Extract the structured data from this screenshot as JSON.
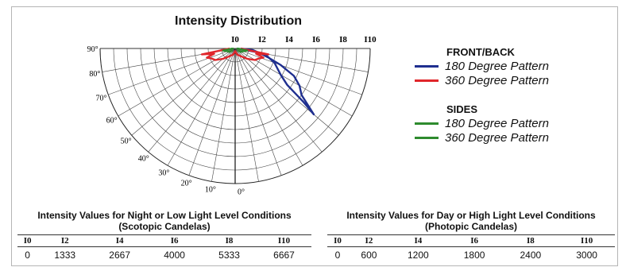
{
  "chart_data": {
    "type": "polar",
    "title": "Intensity Distribution",
    "radial_tick_labels": [
      "I0",
      "I2",
      "I4",
      "I6",
      "I8",
      "I10"
    ],
    "angle_tick_labels": [
      "90°",
      "80°",
      "70°",
      "60°",
      "50°",
      "40°",
      "30°",
      "20°",
      "10°",
      "0°"
    ],
    "legend_groups": [
      {
        "title": "FRONT/BACK",
        "entries": [
          {
            "name": "180 Degree Pattern",
            "color": "#1f2f8f"
          },
          {
            "name": "360 Degree Pattern",
            "color": "#e0262b"
          }
        ]
      },
      {
        "title": "SIDES",
        "entries": [
          {
            "name": "180 Degree Pattern",
            "color": "#2e8b2e"
          },
          {
            "name": "360 Degree Pattern",
            "color": "#2e8b2e"
          }
        ]
      }
    ],
    "series": [
      {
        "name": "180 Degree Pattern",
        "color": "#1f2f8f",
        "points": [
          [
            90,
            0.15
          ],
          [
            80,
            2.2
          ],
          [
            70,
            3.1
          ],
          [
            60,
            3.9
          ],
          [
            55,
            4.7
          ],
          [
            52,
            6.4
          ],
          [
            50,
            7.6
          ],
          [
            55,
            6.0
          ],
          [
            60,
            5.5
          ],
          [
            65,
            4.8
          ],
          [
            70,
            3.6
          ],
          [
            75,
            2.5
          ],
          [
            80,
            1.8
          ],
          [
            85,
            1.3
          ],
          [
            89,
            0.4
          ]
        ]
      },
      {
        "name": "360 Degree Pattern",
        "color": "#e0262b",
        "points": [
          [
            -89,
            0.4
          ],
          [
            -80,
            2.5
          ],
          [
            -76,
            1.6
          ],
          [
            -72,
            2.2
          ],
          [
            -67,
            1.9
          ],
          [
            -60,
            1.7
          ],
          [
            -50,
            1.2
          ],
          [
            -40,
            0.8
          ],
          [
            -30,
            0.6
          ],
          [
            -20,
            0.5
          ],
          [
            -10,
            0.3
          ],
          [
            0,
            0.2
          ],
          [
            10,
            0.3
          ],
          [
            20,
            0.5
          ],
          [
            30,
            0.6
          ],
          [
            40,
            0.8
          ],
          [
            50,
            1.2
          ],
          [
            60,
            1.7
          ],
          [
            67,
            1.9
          ],
          [
            72,
            2.2
          ],
          [
            76,
            1.6
          ],
          [
            80,
            2.5
          ],
          [
            89,
            0.4
          ]
        ]
      },
      {
        "name": "180 Degree Pattern",
        "color": "#2e8b2e",
        "points": [
          [
            90,
            0.1
          ],
          [
            80,
            0.9
          ],
          [
            70,
            0.6
          ],
          [
            60,
            0.5
          ],
          [
            55,
            0.3
          ],
          [
            60,
            0.5
          ],
          [
            70,
            0.6
          ],
          [
            80,
            0.9
          ],
          [
            88,
            0.2
          ]
        ]
      },
      {
        "name": "360 Degree Pattern",
        "color": "#2e8b2e",
        "points": [
          [
            -90,
            0.1
          ],
          [
            -80,
            0.9
          ],
          [
            -70,
            0.6
          ],
          [
            -60,
            0.5
          ],
          [
            -55,
            0.3
          ],
          [
            -60,
            0.5
          ],
          [
            -70,
            0.6
          ],
          [
            -80,
            0.9
          ],
          [
            -88,
            0.2
          ]
        ]
      }
    ]
  },
  "tables": [
    {
      "heading_line1": "Intensity Values for Night or Low Light Level Conditions",
      "heading_line2": "(Scotopic Candelas)",
      "columns": [
        "I0",
        "I2",
        "I4",
        "I6",
        "I8",
        "I10"
      ],
      "values": [
        "0",
        "1333",
        "2667",
        "4000",
        "5333",
        "6667"
      ]
    },
    {
      "heading_line1": "Intensity Values for Day or High Light Level Conditions",
      "heading_line2": "(Photopic Candelas)",
      "columns": [
        "I0",
        "I2",
        "I4",
        "I6",
        "I8",
        "I10"
      ],
      "values": [
        "0",
        "600",
        "1200",
        "1800",
        "2400",
        "3000"
      ]
    }
  ]
}
